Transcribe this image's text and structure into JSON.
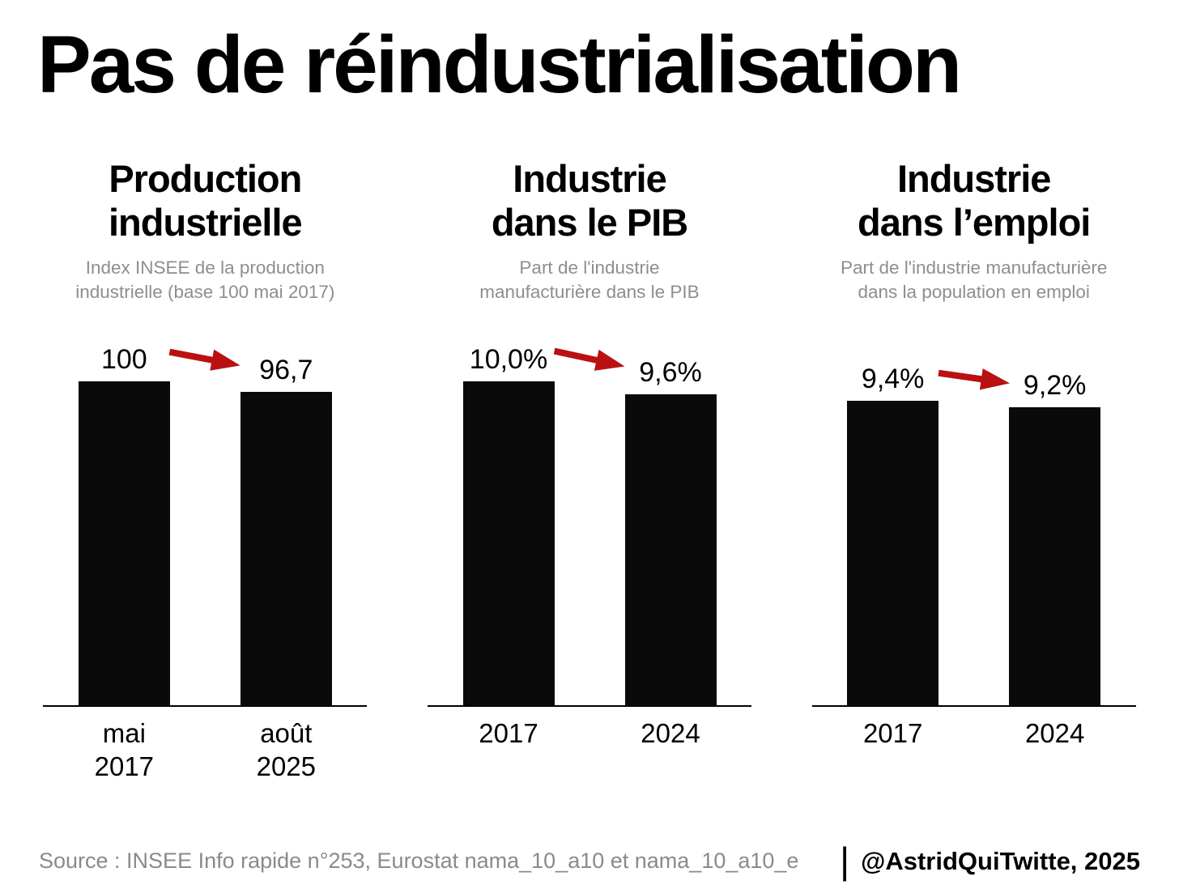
{
  "title": "Pas de réindustrialisation",
  "colors": {
    "background": "#ffffff",
    "bar": "#0a0a0a",
    "arrow": "#b91111",
    "subtitle": "#8e8e8e",
    "text": "#000000"
  },
  "footer": {
    "source": "Source : INSEE Info rapide n°253, Eurostat nama_10_a10 et nama_10_a10_e",
    "separator": "|",
    "credit": "@AstridQuiTwitte, 2025"
  },
  "chart_data": [
    {
      "type": "bar",
      "title": "Production\nindustrielle",
      "subtitle": "Index INSEE de la production\nindustrielle (base 100 mai 2017)",
      "categories": [
        "mai\n2017",
        "août\n2025"
      ],
      "values": [
        100,
        96.7
      ],
      "value_labels": [
        "100",
        "96,7"
      ],
      "xlabel": "",
      "ylabel": "",
      "ylim": [
        0,
        100
      ],
      "grid": false,
      "legend": false,
      "annotations": [
        "red arrow indicating decline from 100 to 96,7"
      ]
    },
    {
      "type": "bar",
      "title": "Industrie\ndans le PIB",
      "subtitle": "Part de l'industrie\nmanufacturière dans le PIB",
      "categories": [
        "2017",
        "2024"
      ],
      "values": [
        10.0,
        9.6
      ],
      "value_labels": [
        "10,0%",
        "9,6%"
      ],
      "xlabel": "",
      "ylabel": "",
      "ylim": [
        0,
        10
      ],
      "grid": false,
      "legend": false,
      "annotations": [
        "red arrow indicating decline from 10,0% to 9,6%"
      ]
    },
    {
      "type": "bar",
      "title": "Industrie\ndans l’emploi",
      "subtitle": "Part de l'industrie manufacturière\ndans la population en emploi",
      "categories": [
        "2017",
        "2024"
      ],
      "values": [
        9.4,
        9.2
      ],
      "value_labels": [
        "9,4%",
        "9,2%"
      ],
      "xlabel": "",
      "ylabel": "",
      "ylim": [
        0,
        10
      ],
      "grid": false,
      "legend": false,
      "annotations": [
        "red arrow indicating decline from 9,4% to 9,2%"
      ]
    }
  ]
}
